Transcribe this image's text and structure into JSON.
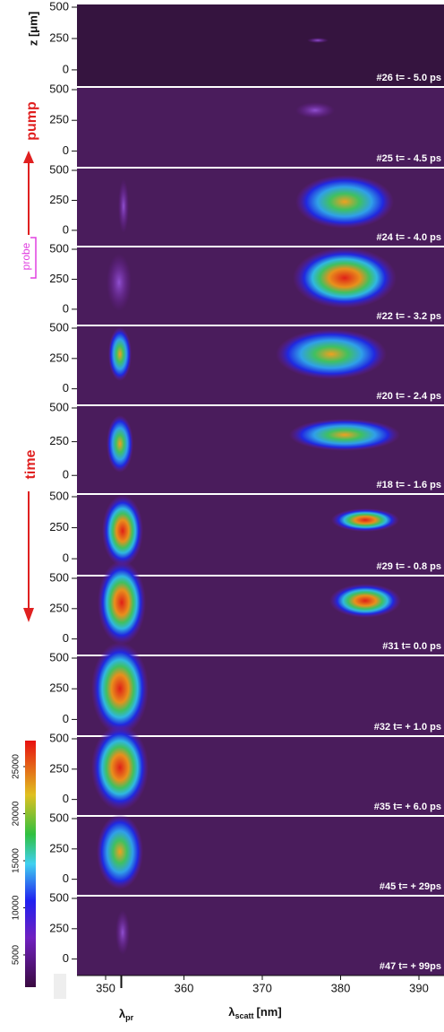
{
  "axis": {
    "y_label": "z [μm]",
    "y_ticks": [
      500,
      250,
      0
    ],
    "x_label_main": "λ",
    "x_label_sub": "scatt",
    "x_unit": "[nm]",
    "x_ticks": [
      350,
      360,
      370,
      380,
      390
    ],
    "probe_label_main": "λ",
    "probe_label_sub": "pr",
    "probe_tick": 352
  },
  "annotations": {
    "pump": "pump",
    "probe": "probe",
    "time": "time"
  },
  "colorbar": {
    "ticks": [
      5000,
      10000,
      15000,
      20000,
      25000
    ]
  },
  "panels": [
    {
      "shot": "#26",
      "time": "t= - 5.0 ps"
    },
    {
      "shot": "#25",
      "time": "t= - 4.5 ps"
    },
    {
      "shot": "#24",
      "time": "t= - 4.0 ps"
    },
    {
      "shot": "#22",
      "time": "t= - 3.2 ps"
    },
    {
      "shot": "#20",
      "time": "t= - 2.4 ps"
    },
    {
      "shot": "#18",
      "time": "t= - 1.6 ps"
    },
    {
      "shot": "#29",
      "time": "t= - 0.8 ps"
    },
    {
      "shot": "#31",
      "time": "t= 0.0 ps"
    },
    {
      "shot": "#32",
      "time": "t= + 1.0 ps"
    },
    {
      "shot": "#35",
      "time": "t= + 6.0 ps"
    },
    {
      "shot": "#45",
      "time": "t= + 29ps"
    },
    {
      "shot": "#47",
      "time": "t= + 99ps"
    }
  ]
}
